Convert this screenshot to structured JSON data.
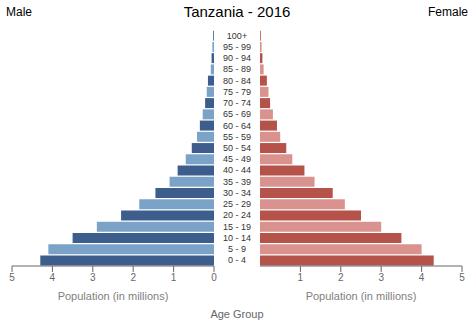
{
  "chart_data": {
    "type": "bar",
    "orientation": "horizontal",
    "title": "Tanzania - 2016",
    "xlabel": "Population (in millions)",
    "ylabel": "Age Group",
    "categories": [
      "0 - 4",
      "5 - 9",
      "10 - 14",
      "15 - 19",
      "20 - 24",
      "25 - 29",
      "30 - 34",
      "35 - 39",
      "40 - 44",
      "45 - 49",
      "50 - 54",
      "55 - 59",
      "60 - 64",
      "65 - 69",
      "70 - 74",
      "75 - 79",
      "80 - 84",
      "85 - 89",
      "90 - 94",
      "95 - 99",
      "100+"
    ],
    "series": [
      {
        "name": "Male",
        "colors": [
          "#3d5e8c",
          "#7ba3c8",
          "#3d5e8c",
          "#7ba3c8",
          "#3d5e8c",
          "#7ba3c8",
          "#3d5e8c",
          "#7ba3c8",
          "#3d5e8c",
          "#7ba3c8",
          "#3d5e8c",
          "#7ba3c8",
          "#3d5e8c",
          "#7ba3c8",
          "#3d5e8c",
          "#7ba3c8",
          "#3d5e8c",
          "#7ba3c8",
          "#3d5e8c",
          "#7ba3c8",
          "#3d5e8c"
        ],
        "values": [
          4.3,
          4.1,
          3.5,
          2.9,
          2.3,
          1.85,
          1.45,
          1.1,
          0.9,
          0.7,
          0.55,
          0.42,
          0.35,
          0.28,
          0.22,
          0.18,
          0.15,
          0.08,
          0.06,
          0.04,
          0.02
        ]
      },
      {
        "name": "Female",
        "colors": [
          "#b5534a",
          "#d9928e",
          "#b5534a",
          "#d9928e",
          "#b5534a",
          "#d9928e",
          "#b5534a",
          "#d9928e",
          "#b5534a",
          "#d9928e",
          "#b5534a",
          "#d9928e",
          "#b5534a",
          "#d9928e",
          "#b5534a",
          "#d9928e",
          "#b5534a",
          "#d9928e",
          "#b5534a",
          "#d9928e",
          "#b5534a"
        ],
        "values": [
          4.3,
          4.0,
          3.5,
          3.0,
          2.5,
          2.1,
          1.8,
          1.35,
          1.1,
          0.8,
          0.65,
          0.5,
          0.42,
          0.32,
          0.25,
          0.21,
          0.17,
          0.09,
          0.06,
          0.04,
          0.02
        ]
      }
    ],
    "xlim": [
      0,
      5
    ],
    "xticks": [
      0,
      1,
      2,
      3,
      4,
      5
    ],
    "grid": false
  }
}
